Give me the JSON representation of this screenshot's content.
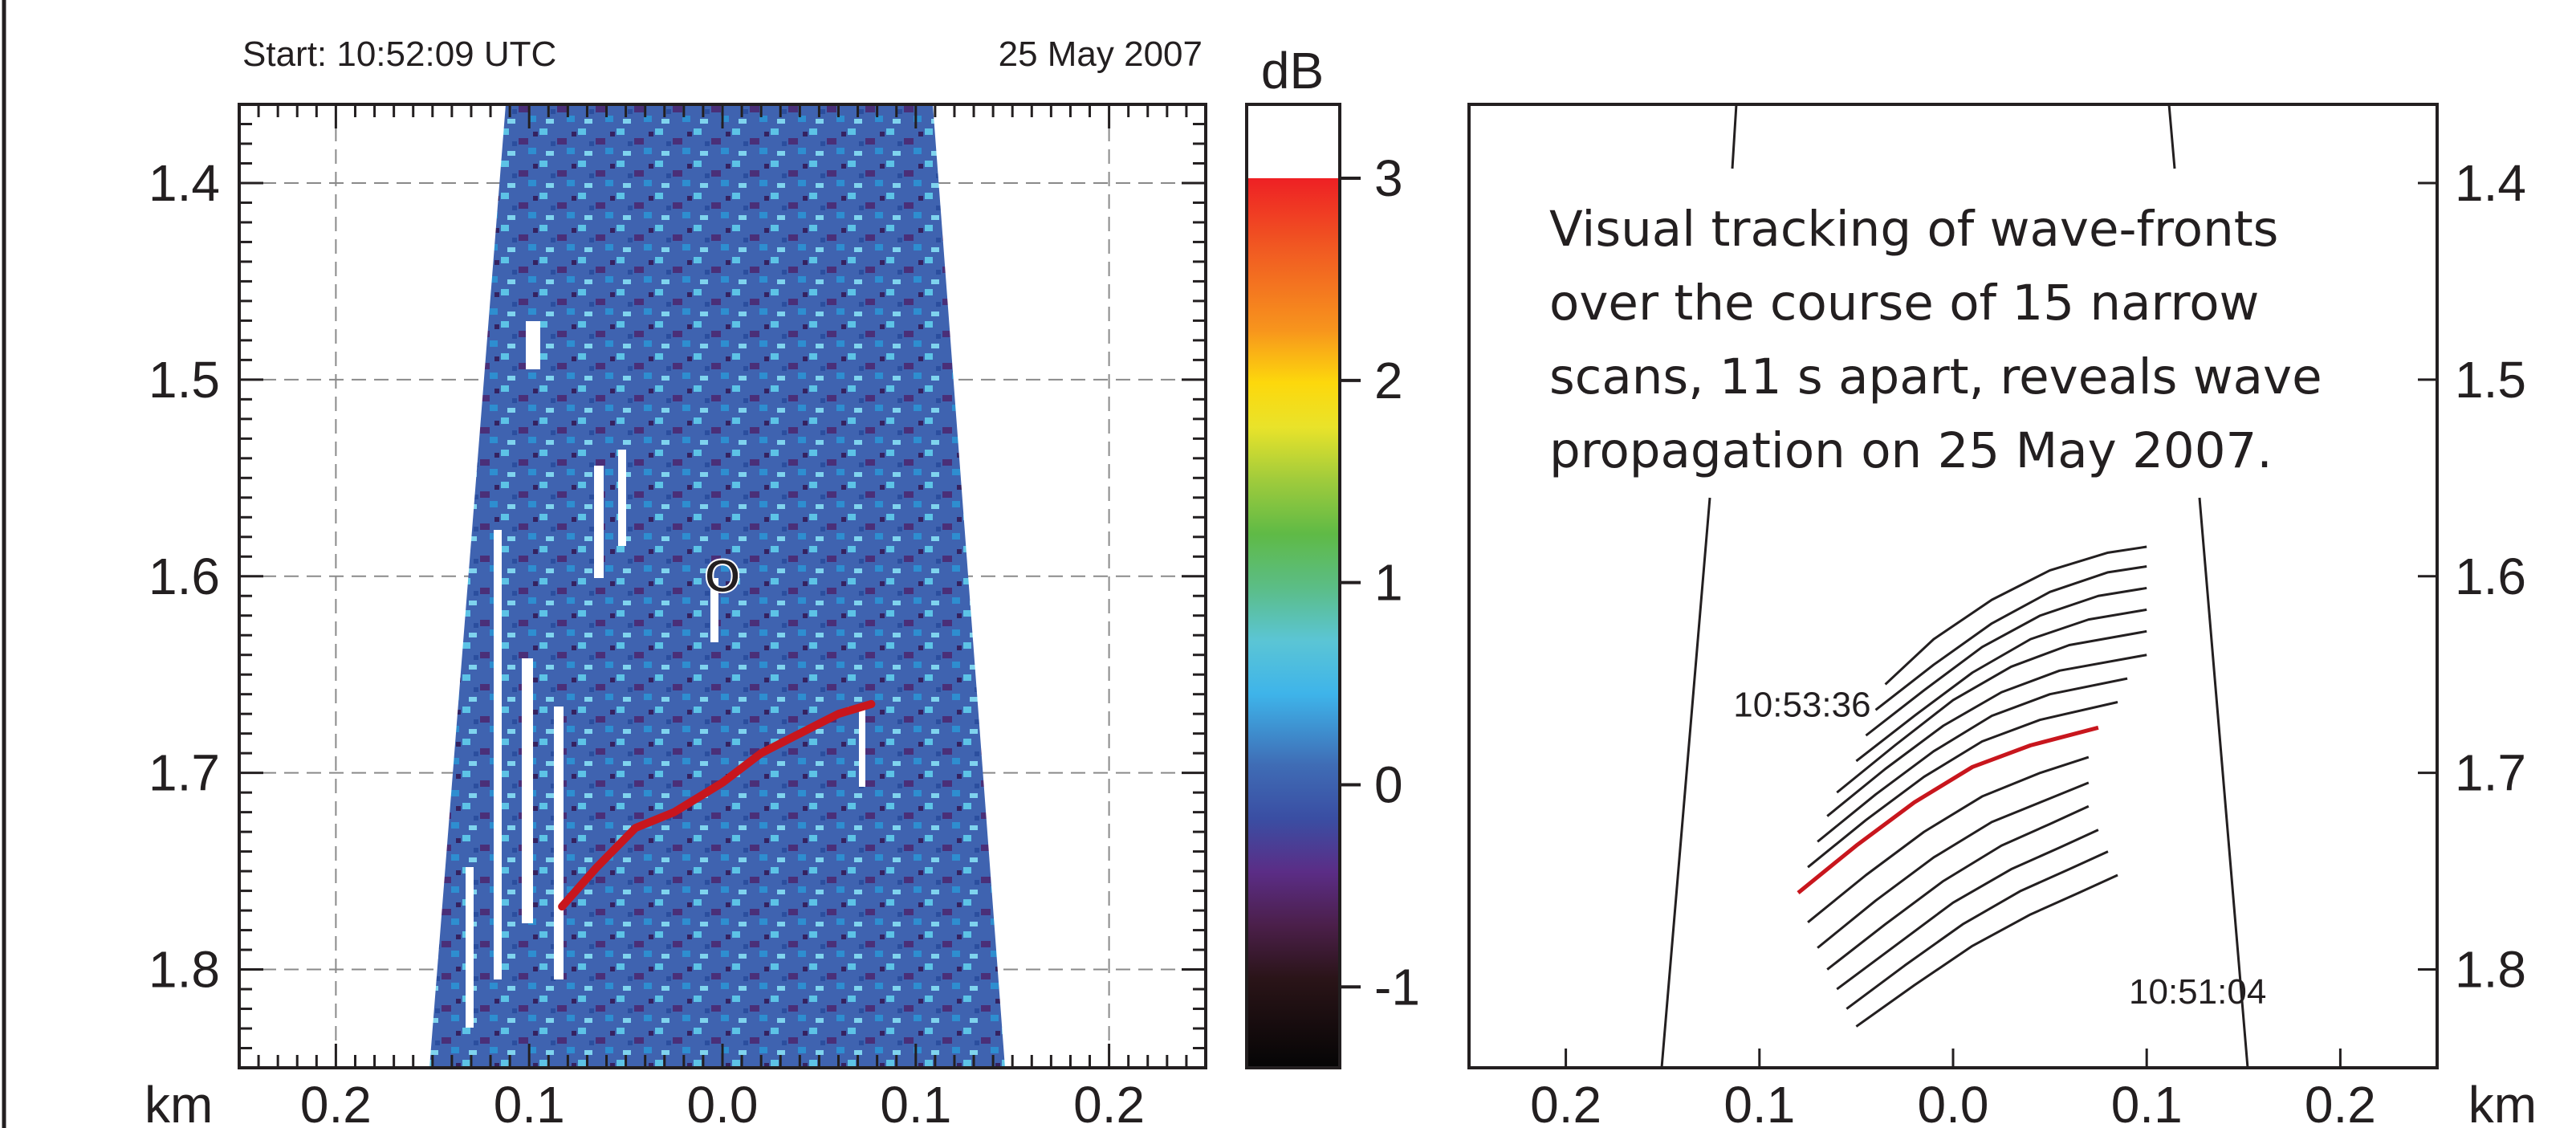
{
  "header": {
    "start_label": "Start: 10:52:09 UTC",
    "date_label": "25 May 2007"
  },
  "chart_data": [
    {
      "type": "heatmap",
      "title": "",
      "xlabel": "km",
      "ylabel": "",
      "x_tick_labels": [
        "0.2",
        "0.1",
        "0.0",
        "0.1",
        "0.2"
      ],
      "y_tick_labels": [
        "1.4",
        "1.5",
        "1.6",
        "1.7",
        "1.8"
      ],
      "xlim": [
        -0.25,
        0.25
      ],
      "ylim": [
        1.85,
        1.36
      ],
      "grid": true,
      "highlighted_wavefront": {
        "color": "#c8161d",
        "x": [
          -0.083,
          -0.065,
          -0.045,
          -0.025,
          0.0,
          0.02,
          0.04,
          0.06,
          0.077
        ],
        "y": [
          1.768,
          1.748,
          1.728,
          1.72,
          1.705,
          1.69,
          1.68,
          1.67,
          1.665
        ]
      },
      "marker": {
        "label": "O",
        "x": 0.0,
        "y": 1.608
      }
    },
    {
      "type": "colorbar",
      "label": "dB",
      "tick_labels": [
        "3",
        "2",
        "1",
        "0",
        "-1"
      ],
      "range": [
        -1.4,
        3.0
      ]
    },
    {
      "type": "line",
      "title": "",
      "xlabel": "km",
      "ylabel": "",
      "x_tick_labels": [
        "0.2",
        "0.1",
        "0.0",
        "0.1",
        "0.2"
      ],
      "y_tick_labels": [
        "1.4",
        "1.5",
        "1.6",
        "1.7",
        "1.8"
      ],
      "xlim": [
        -0.25,
        0.25
      ],
      "ylim": [
        1.85,
        1.36
      ],
      "annotation": "Visual tracking of wave-fronts over the course of 15 narrow scans, 11 s apart, reveals wave propagation on 25 May 2007.",
      "annotation_lines": [
        "Visual tracking of wave-fronts",
        "over the course of 15 narrow",
        "scans, 11 s apart, reveals wave",
        "propagation on 25 May 2007."
      ],
      "series": [
        {
          "name": "10:53:36",
          "x": [
            -0.035,
            -0.01,
            0.02,
            0.05,
            0.08,
            0.1
          ],
          "y": [
            1.655,
            1.632,
            1.612,
            1.597,
            1.588,
            1.585
          ]
        },
        {
          "name": "",
          "x": [
            -0.04,
            -0.01,
            0.02,
            0.05,
            0.08,
            0.1
          ],
          "y": [
            1.668,
            1.645,
            1.624,
            1.608,
            1.598,
            1.595
          ]
        },
        {
          "name": "",
          "x": [
            -0.045,
            -0.015,
            0.015,
            0.045,
            0.075,
            0.1
          ],
          "y": [
            1.681,
            1.658,
            1.636,
            1.62,
            1.61,
            1.606
          ]
        },
        {
          "name": "",
          "x": [
            -0.05,
            -0.02,
            0.01,
            0.04,
            0.07,
            0.1
          ],
          "y": [
            1.694,
            1.671,
            1.649,
            1.632,
            1.622,
            1.617
          ]
        },
        {
          "name": "",
          "x": [
            -0.06,
            -0.03,
            0.0,
            0.03,
            0.06,
            0.1
          ],
          "y": [
            1.71,
            1.686,
            1.663,
            1.646,
            1.635,
            1.628
          ]
        },
        {
          "name": "",
          "x": [
            -0.065,
            -0.035,
            -0.005,
            0.025,
            0.055,
            0.1
          ],
          "y": [
            1.722,
            1.698,
            1.676,
            1.659,
            1.648,
            1.64
          ]
        },
        {
          "name": "",
          "x": [
            -0.07,
            -0.04,
            -0.01,
            0.02,
            0.05,
            0.09
          ],
          "y": [
            1.735,
            1.711,
            1.689,
            1.671,
            1.66,
            1.652
          ]
        },
        {
          "name": "",
          "x": [
            -0.075,
            -0.045,
            -0.015,
            0.015,
            0.045,
            0.085
          ],
          "y": [
            1.748,
            1.724,
            1.702,
            1.684,
            1.673,
            1.664
          ]
        },
        {
          "name": "",
          "x": [
            -0.08,
            -0.05,
            -0.02,
            0.01,
            0.04,
            0.075
          ],
          "y": [
            1.761,
            1.737,
            1.715,
            1.697,
            1.686,
            1.677
          ]
        },
        {
          "name": "",
          "x": [
            -0.075,
            -0.045,
            -0.015,
            0.015,
            0.045,
            0.07
          ],
          "y": [
            1.776,
            1.752,
            1.73,
            1.712,
            1.7,
            1.692
          ]
        },
        {
          "name": "",
          "x": [
            -0.07,
            -0.04,
            -0.01,
            0.02,
            0.05,
            0.07
          ],
          "y": [
            1.789,
            1.765,
            1.743,
            1.725,
            1.713,
            1.705
          ]
        },
        {
          "name": "",
          "x": [
            -0.065,
            -0.035,
            -0.005,
            0.025,
            0.05,
            0.07
          ],
          "y": [
            1.8,
            1.777,
            1.755,
            1.737,
            1.726,
            1.717
          ]
        },
        {
          "name": "",
          "x": [
            -0.06,
            -0.03,
            0.0,
            0.03,
            0.055,
            0.075
          ],
          "y": [
            1.81,
            1.788,
            1.766,
            1.749,
            1.738,
            1.729
          ]
        },
        {
          "name": "",
          "x": [
            -0.055,
            -0.025,
            0.005,
            0.035,
            0.06,
            0.08
          ],
          "y": [
            1.82,
            1.798,
            1.777,
            1.76,
            1.749,
            1.74
          ]
        },
        {
          "name": "10:51:04",
          "x": [
            -0.05,
            -0.02,
            0.01,
            0.04,
            0.065,
            0.085
          ],
          "y": [
            1.829,
            1.808,
            1.788,
            1.772,
            1.761,
            1.752
          ]
        }
      ],
      "highlighted_series_index": 8,
      "highlight_color": "#c8161d",
      "series_color": "#231f20",
      "scan_edges": {
        "x": [
          -0.12,
          -0.12,
          0.12,
          0.12
        ],
        "y": [
          1.36,
          1.85,
          1.36,
          1.85
        ]
      }
    }
  ]
}
